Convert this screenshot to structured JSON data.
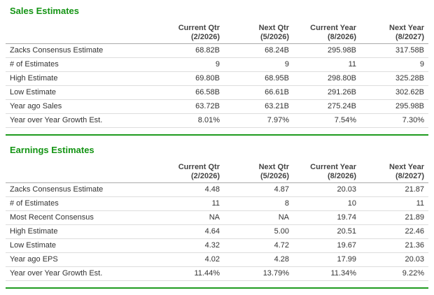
{
  "colors": {
    "title_green": "#149414",
    "rule_green": "#1f9b1f",
    "header_border": "#aaaaaa",
    "row_border": "#dddddd",
    "text": "#333333"
  },
  "columns": [
    {
      "line1": "Current Qtr",
      "line2": "(2/2026)"
    },
    {
      "line1": "Next Qtr",
      "line2": "(5/2026)"
    },
    {
      "line1": "Current Year",
      "line2": "(8/2026)"
    },
    {
      "line1": "Next Year",
      "line2": "(8/2027)"
    }
  ],
  "sales": {
    "title": "Sales Estimates",
    "rows": [
      {
        "label": "Zacks Consensus Estimate",
        "values": [
          "68.82B",
          "68.24B",
          "295.98B",
          "317.58B"
        ]
      },
      {
        "label": "# of Estimates",
        "values": [
          "9",
          "9",
          "11",
          "9"
        ]
      },
      {
        "label": "High Estimate",
        "values": [
          "69.80B",
          "68.95B",
          "298.80B",
          "325.28B"
        ]
      },
      {
        "label": "Low Estimate",
        "values": [
          "66.58B",
          "66.61B",
          "291.26B",
          "302.62B"
        ]
      },
      {
        "label": "Year ago Sales",
        "values": [
          "63.72B",
          "63.21B",
          "275.24B",
          "295.98B"
        ]
      },
      {
        "label": "Year over Year Growth Est.",
        "values": [
          "8.01%",
          "7.97%",
          "7.54%",
          "7.30%"
        ]
      }
    ]
  },
  "earnings": {
    "title": "Earnings Estimates",
    "rows": [
      {
        "label": "Zacks Consensus Estimate",
        "values": [
          "4.48",
          "4.87",
          "20.03",
          "21.87"
        ]
      },
      {
        "label": "# of Estimates",
        "values": [
          "11",
          "8",
          "10",
          "11"
        ]
      },
      {
        "label": "Most Recent Consensus",
        "values": [
          "NA",
          "NA",
          "19.74",
          "21.89"
        ]
      },
      {
        "label": "High Estimate",
        "values": [
          "4.64",
          "5.00",
          "20.51",
          "22.46"
        ]
      },
      {
        "label": "Low Estimate",
        "values": [
          "4.32",
          "4.72",
          "19.67",
          "21.36"
        ]
      },
      {
        "label": "Year ago EPS",
        "values": [
          "4.02",
          "4.28",
          "17.99",
          "20.03"
        ]
      },
      {
        "label": "Year over Year Growth Est.",
        "values": [
          "11.44%",
          "13.79%",
          "11.34%",
          "9.22%"
        ]
      }
    ]
  }
}
